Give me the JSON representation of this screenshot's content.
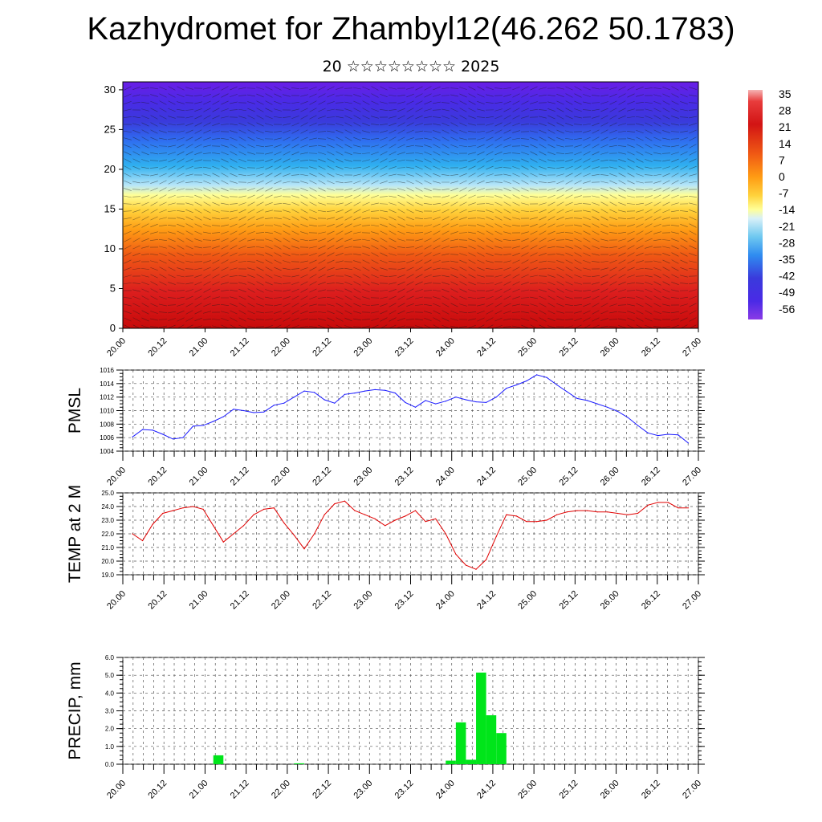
{
  "header": {
    "title": "Kazhydromet for Zhambyl12(46.262 50.1783)",
    "subtitle": "20 ☆☆☆☆☆☆☆☆ 2025"
  },
  "colors": {
    "pmsl_line": "#1a1aff",
    "temp_line": "#e00000",
    "precip_bar": "#00e51a",
    "grid": "#555555",
    "colormap": [
      "#6a1ee6",
      "#3a3adc",
      "#2f6ff0",
      "#2fb0f0",
      "#b8e6f8",
      "#ffff96",
      "#ffd23c",
      "#ff9c14",
      "#f05a14",
      "#dc1e1e",
      "#c80a0a",
      "#f08a8a"
    ]
  },
  "chart_data": [
    {
      "type": "heatmap",
      "name": "cross-section",
      "x_ticks": [
        "20.00",
        "20.12",
        "21.00",
        "21.12",
        "22.00",
        "22.12",
        "23.00",
        "23.12",
        "24.00",
        "24.12",
        "25.00",
        "25.12",
        "26.00",
        "26.12",
        "27.00"
      ],
      "y_ticks": [
        "0",
        "5",
        "10",
        "15",
        "20",
        "25",
        "30"
      ],
      "ylim": [
        0,
        31
      ],
      "colorbar_levels": [
        "35",
        "28",
        "21",
        "14",
        "7",
        "0",
        "-7",
        "-14",
        "-21",
        "-28",
        "-35",
        "-42",
        "-49",
        "-56"
      ],
      "overlay": "wind barbs / vectors"
    },
    {
      "type": "line",
      "ylabel": "PMSL",
      "ylim": [
        1004,
        1016
      ],
      "y_ticks": [
        "1004",
        "1006",
        "1008",
        "1010",
        "1012",
        "1014",
        "1016"
      ],
      "x_ticks": [
        "20.00",
        "20.12",
        "21.00",
        "21.12",
        "22.00",
        "22.12",
        "23.00",
        "23.12",
        "24.00",
        "24.12",
        "25.00",
        "25.12",
        "26.00",
        "26.12",
        "27.00"
      ],
      "x": [
        0,
        3,
        6,
        9,
        12,
        15,
        18,
        21,
        24,
        27,
        30,
        33,
        36,
        39,
        42,
        45,
        48,
        51,
        54,
        57,
        60,
        63,
        66,
        69,
        72,
        75,
        78,
        81,
        84,
        87,
        90,
        93,
        96,
        99,
        102,
        105,
        108,
        111,
        114,
        117,
        120,
        123,
        126,
        129,
        132,
        135,
        138,
        141,
        144,
        147,
        150,
        153,
        156,
        159,
        162,
        165,
        168
      ],
      "series": [
        {
          "values": [
            1006.1,
            1007.2,
            1007.1,
            1006.5,
            1005.8,
            1006.0,
            1007.7,
            1007.8,
            1008.4,
            1009.1,
            1010.2,
            1010.0,
            1009.7,
            1009.8,
            1010.8,
            1011.1,
            1012.0,
            1012.9,
            1012.7,
            1011.6,
            1011.1,
            1012.4,
            1012.6,
            1012.9,
            1013.1,
            1013.0,
            1012.6,
            1011.2,
            1010.5,
            1011.5,
            1011.0,
            1011.4,
            1012.0,
            1011.6,
            1011.3,
            1011.2,
            1012.0,
            1013.3,
            1013.8,
            1014.4,
            1015.3,
            1014.9,
            1013.8,
            1012.8,
            1011.8,
            1011.5,
            1011.0,
            1010.5,
            1009.9,
            1009.0,
            1007.8,
            1006.7,
            1006.3,
            1006.5,
            1006.4,
            1005.2,
            null
          ]
        }
      ]
    },
    {
      "type": "line",
      "ylabel": "TEMP at 2 M",
      "ylim": [
        19.0,
        25.0
      ],
      "y_ticks": [
        "19.0",
        "20.0",
        "21.0",
        "22.0",
        "23.0",
        "24.0",
        "25.0"
      ],
      "x_ticks": [
        "20.00",
        "20.12",
        "21.00",
        "21.12",
        "22.00",
        "22.12",
        "23.00",
        "23.12",
        "24.00",
        "24.12",
        "25.00",
        "25.12",
        "26.00",
        "26.12",
        "27.00"
      ],
      "x": [
        0,
        3,
        6,
        9,
        12,
        15,
        18,
        21,
        24,
        27,
        30,
        33,
        36,
        39,
        42,
        45,
        48,
        51,
        54,
        57,
        60,
        63,
        66,
        69,
        72,
        75,
        78,
        81,
        84,
        87,
        90,
        93,
        96,
        99,
        102,
        105,
        108,
        111,
        114,
        117,
        120,
        123,
        126,
        129,
        132,
        135,
        138,
        141,
        144,
        147,
        150,
        153,
        156,
        159,
        162,
        165,
        168
      ],
      "series": [
        {
          "values": [
            22.0,
            21.5,
            22.7,
            23.5,
            23.7,
            23.9,
            24.0,
            23.8,
            22.6,
            21.4,
            22.0,
            22.6,
            23.4,
            23.8,
            23.9,
            22.8,
            21.9,
            20.9,
            22.0,
            23.4,
            24.2,
            24.4,
            23.7,
            23.4,
            23.1,
            22.6,
            23.0,
            23.3,
            23.7,
            22.9,
            23.1,
            22.0,
            20.5,
            19.7,
            19.4,
            20.1,
            21.8,
            23.4,
            23.3,
            22.9,
            22.9,
            23.0,
            23.4,
            23.6,
            23.7,
            23.7,
            23.6,
            23.6,
            23.5,
            23.4,
            23.5,
            24.1,
            24.3,
            24.3,
            23.9,
            23.9,
            null
          ]
        }
      ]
    },
    {
      "type": "bar",
      "ylabel": "PRECIP, mm",
      "ylim": [
        0.0,
        6.0
      ],
      "y_ticks": [
        "0.0",
        "1.0",
        "2.0",
        "3.0",
        "4.0",
        "5.0",
        "6.0"
      ],
      "x_ticks": [
        "20.00",
        "20.12",
        "21.00",
        "21.12",
        "22.00",
        "22.12",
        "23.00",
        "23.12",
        "24.00",
        "24.12",
        "25.00",
        "25.12",
        "26.00",
        "26.12",
        "27.00"
      ],
      "bars": [
        {
          "x_start": 24,
          "x_end": 27,
          "value": 0.5
        },
        {
          "x_start": 48,
          "x_end": 51,
          "value": 0.05
        },
        {
          "x_start": 93,
          "x_end": 96,
          "value": 0.2
        },
        {
          "x_start": 96,
          "x_end": 99,
          "value": 2.35
        },
        {
          "x_start": 99,
          "x_end": 102,
          "value": 0.25
        },
        {
          "x_start": 102,
          "x_end": 105,
          "value": 5.15
        },
        {
          "x_start": 105,
          "x_end": 108,
          "value": 2.75
        },
        {
          "x_start": 108,
          "x_end": 111,
          "value": 1.75
        }
      ]
    }
  ]
}
